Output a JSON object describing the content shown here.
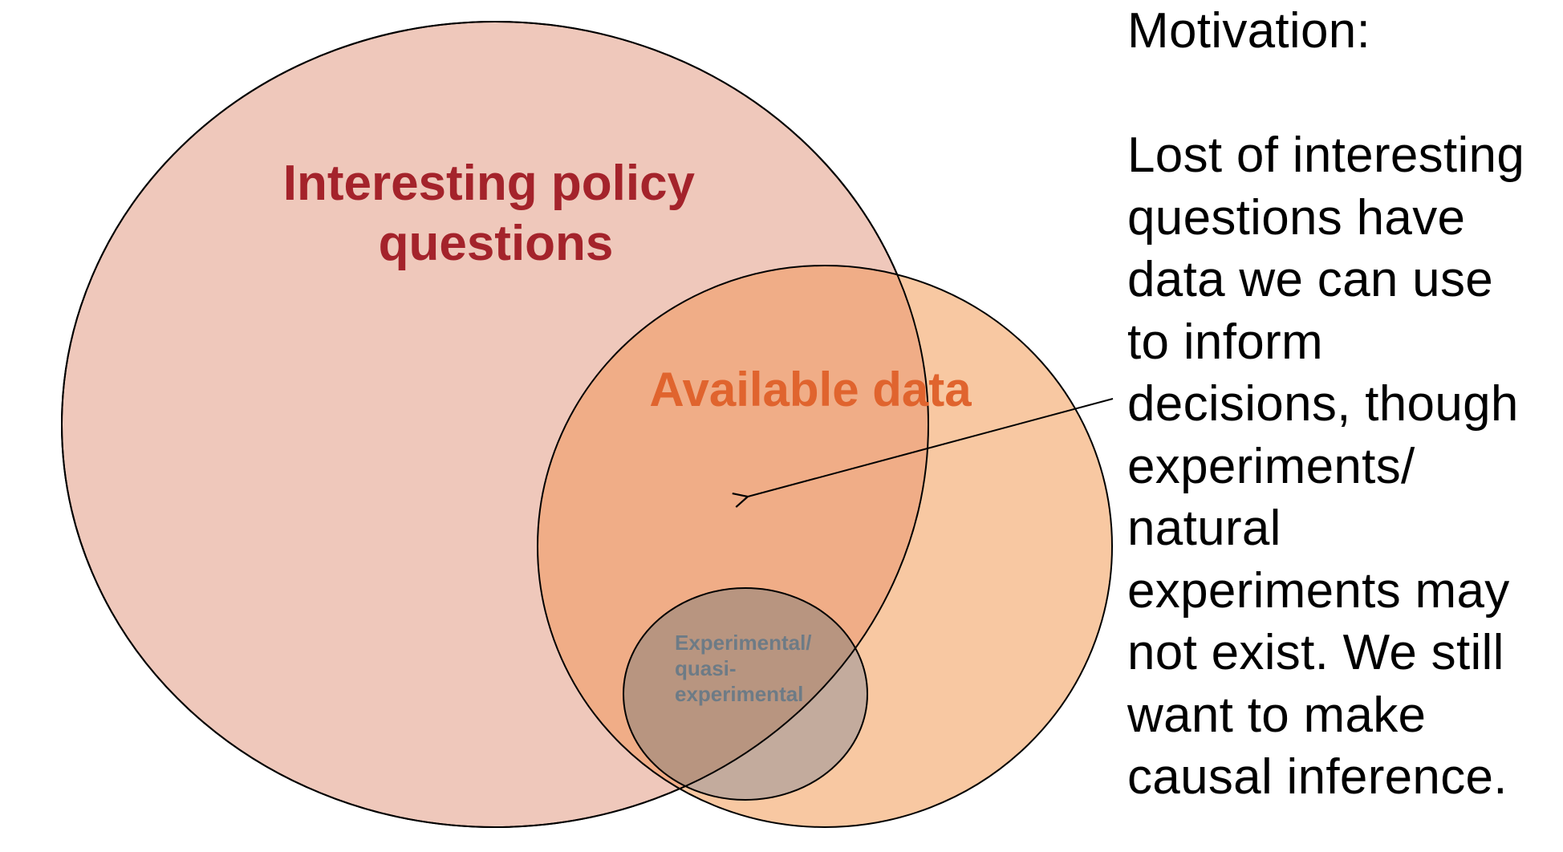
{
  "diagram": {
    "circles": {
      "policy": {
        "label_lines": [
          "Interesting policy",
          "questions"
        ],
        "fill": "#efc8bb",
        "label_color": "#a4232b"
      },
      "data": {
        "label": "Available data",
        "fill": "#f8c8a2",
        "overlap_fill": "#f0ad87",
        "label_color": "#e0642e"
      },
      "experimental": {
        "label_lines": [
          "Experimental/",
          "quasi-",
          "experimental"
        ],
        "fill": "#c3ab9d",
        "overlap_fill": "#b89580",
        "label_color": "#6d7b86"
      }
    },
    "stroke_color": "#000000"
  },
  "motivation": {
    "heading": "Motivation:",
    "lines": [
      "Lost of interesting",
      "questions have",
      "data we can use",
      "to inform",
      "decisions, though",
      "experiments/",
      "natural",
      "experiments may",
      "not exist. We still",
      "want to make",
      "causal inference."
    ]
  }
}
